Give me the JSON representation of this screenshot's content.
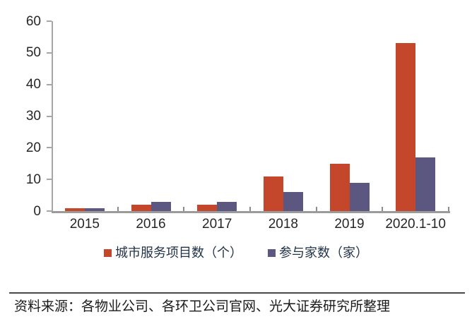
{
  "chart_data": {
    "type": "bar",
    "categories": [
      "2015",
      "2016",
      "2017",
      "2018",
      "2019",
      "2020.1-10"
    ],
    "series": [
      {
        "name": "城市服务项目数（个）",
        "color": "#C4472B",
        "values": [
          1,
          2,
          2,
          11,
          15,
          53
        ]
      },
      {
        "name": "参与家数（家）",
        "color": "#5B5780",
        "values": [
          1,
          3,
          3,
          6,
          9,
          17
        ]
      }
    ],
    "title": "",
    "xlabel": "",
    "ylabel": "",
    "ylim": [
      0,
      60
    ],
    "yticks": [
      0,
      10,
      20,
      30,
      40,
      50,
      60
    ],
    "grid": false,
    "legend_position": "bottom"
  },
  "source_note": "资料来源：各物业公司、各环卫公司官网、光大证券研究所整理",
  "colors": {
    "axis": "#A6A6A6",
    "tick": "#8C8C8C",
    "axis_label": "#262626",
    "legend_text": "#223348",
    "divider": "#4A4A4A",
    "background": "#FFFFFF"
  }
}
